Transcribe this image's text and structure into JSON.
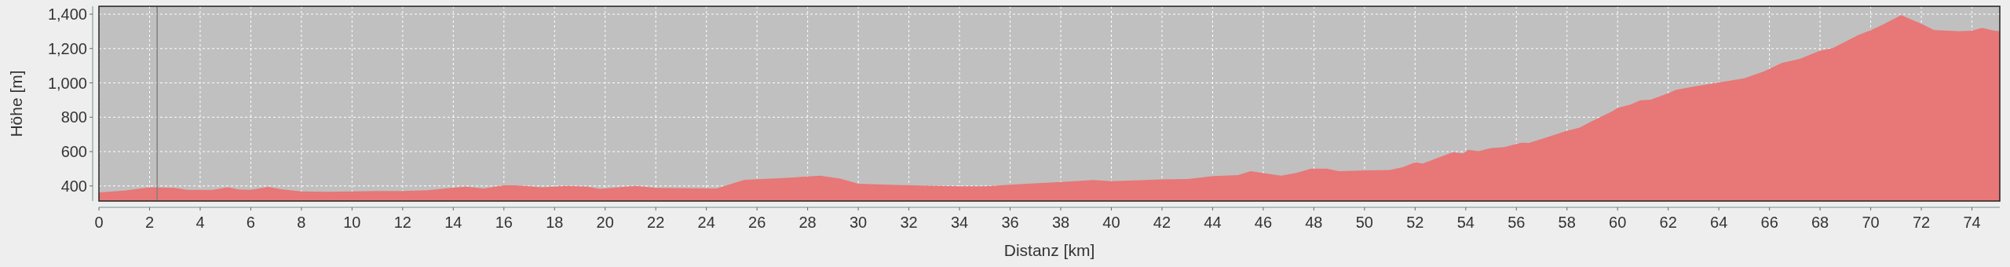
{
  "chart_data": {
    "type": "area",
    "xlabel": "Distanz [km]",
    "ylabel": "Höhe [m]",
    "x": [
      0,
      1,
      2,
      3,
      3.5,
      4.5,
      5.1,
      5.5,
      6,
      6.7,
      7.2,
      8,
      9,
      10,
      11,
      12,
      13,
      14,
      14.5,
      15.2,
      16,
      16.5,
      17.5,
      18.5,
      19.3,
      19.8,
      21.2,
      22,
      24.4,
      25.5,
      27,
      28.5,
      29.3,
      30,
      31.5,
      34,
      35,
      36.5,
      38,
      39.3,
      40,
      42,
      43,
      44,
      45,
      45.5,
      46.7,
      47.3,
      47.9,
      48.5,
      49,
      50,
      51,
      51.5,
      52,
      52.3,
      53.5,
      53.9,
      54.1,
      54.5,
      55,
      55.5,
      56.2,
      56.5,
      57,
      58,
      58.5,
      59,
      59.8,
      60,
      60.5,
      60.9,
      61.3,
      62,
      62.3,
      63,
      64,
      65,
      65.8,
      66.5,
      67.2,
      68,
      68.5,
      69.5,
      70,
      70.5,
      71.2,
      72,
      72.5,
      73,
      73.5,
      74,
      74.4,
      74.8,
      75.1
    ],
    "series": [
      {
        "color": "#e87777",
        "values": [
          362,
          373,
          392,
          389,
          377,
          377,
          392,
          379,
          377,
          394,
          381,
          368,
          366,
          368,
          370,
          370,
          375,
          390,
          396,
          385,
          404,
          404,
          392,
          400,
          396,
          383,
          400,
          389,
          385,
          436,
          446,
          459,
          442,
          413,
          406,
          398,
          398,
          411,
          423,
          434,
          427,
          438,
          440,
          457,
          463,
          486,
          459,
          476,
          501,
          501,
          486,
          490,
          493,
          509,
          537,
          530,
          597,
          589,
          610,
          602,
          621,
          625,
          652,
          650,
          673,
          721,
          740,
          778,
          835,
          854,
          873,
          898,
          902,
          940,
          959,
          978,
          1003,
          1026,
          1068,
          1117,
          1140,
          1188,
          1202,
          1278,
          1306,
          1341,
          1394,
          1344,
          1308,
          1304,
          1301,
          1304,
          1320,
          1306,
          1301
        ]
      }
    ],
    "xlim": [
      0,
      75.1
    ],
    "ylim": [
      312,
      1446
    ],
    "xticks": [
      0,
      2,
      4,
      6,
      8,
      10,
      12,
      14,
      16,
      18,
      20,
      22,
      24,
      26,
      28,
      30,
      32,
      34,
      36,
      38,
      40,
      42,
      44,
      46,
      48,
      50,
      52,
      54,
      56,
      58,
      60,
      62,
      64,
      66,
      68,
      70,
      72,
      74
    ],
    "yticks": [
      400,
      600,
      800,
      {
        "value": 1000,
        "label": "1,000"
      },
      {
        "value": 1200,
        "label": "1,200"
      },
      {
        "value": 1400,
        "label": "1,400"
      }
    ],
    "grid": true,
    "ref_lines": [
      {
        "axis": "x",
        "value": 2.3,
        "color": "#808080"
      }
    ]
  }
}
